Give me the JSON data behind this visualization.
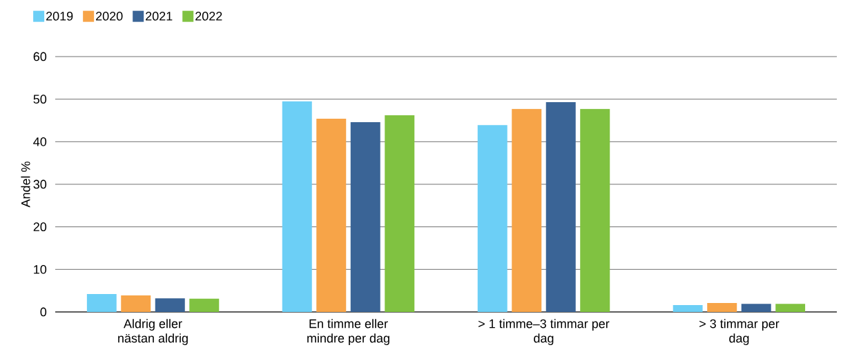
{
  "chart_data": {
    "type": "bar",
    "ylabel": "Andel %",
    "categories": [
      "Aldrig eller nästan aldrig",
      "En timme eller mindre per dag",
      "> 1 timme–3 timmar per dag",
      "> 3 timmar per dag"
    ],
    "series": [
      {
        "name": "2019",
        "color": "#6ccff6",
        "values": [
          4.2,
          49.5,
          43.9,
          1.6
        ]
      },
      {
        "name": "2020",
        "color": "#f7a448",
        "values": [
          3.9,
          45.4,
          47.7,
          2.1
        ]
      },
      {
        "name": "2021",
        "color": "#3a6496",
        "values": [
          3.2,
          44.6,
          49.3,
          1.9
        ]
      },
      {
        "name": "2022",
        "color": "#80c241",
        "values": [
          3.1,
          46.2,
          47.7,
          1.9
        ]
      }
    ],
    "ylim": [
      0,
      60
    ],
    "yticks": [
      0,
      10,
      20,
      30,
      40,
      50,
      60
    ],
    "grid": "y",
    "legend": "top left"
  }
}
